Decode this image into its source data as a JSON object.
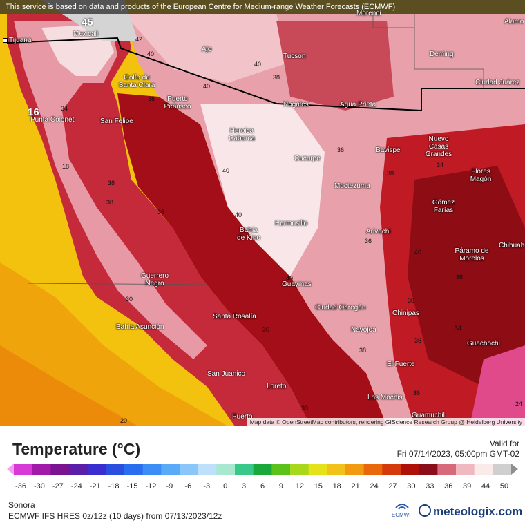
{
  "disclaimer": "This service is based on data and products of the European Centre for Medium-range Weather Forecasts (ECMWF)",
  "attribution": "Map data © OpenStreetMap contributors, rendering GIScience Research Group @ Heidelberg University",
  "cities": [
    "Tijuana",
    "Mexicali",
    "Ajo",
    "Tucson",
    "Morenci",
    "Alamo",
    "Deming",
    "Ciudad Juárez",
    "Golfo de Santa Clara",
    "Puerto Peñasco",
    "San Felipe",
    "Punta Colonet",
    "Heroica Caborca",
    "Nogales",
    "Agua Prieta",
    "Cucurpe",
    "Bavispe",
    "Nuevo Casas Grandes",
    "Flores Magón",
    "Moctezuma",
    "Gómez Farías",
    "Hermosillo",
    "Bahía de Kino",
    "Arivechi",
    "Páramo de Morelos",
    "Chihuahua",
    "Guerrero Negro",
    "Guaymas",
    "Ciudad Obregón",
    "Chinipas",
    "Bahía Asunción",
    "Santa Rosalía",
    "Navojoa",
    "Guachochi",
    "El Fuerte",
    "San Juanico",
    "Loreto",
    "Los Mochis",
    "Guamuchil",
    "Puerto"
  ],
  "isolines": [
    "45",
    "42",
    "40",
    "40",
    "38",
    "40",
    "16",
    "34",
    "18",
    "38",
    "38",
    "36",
    "38",
    "40",
    "40",
    "36",
    "40",
    "36",
    "38",
    "34",
    "40",
    "38",
    "36",
    "34",
    "30",
    "30",
    "30",
    "38",
    "36",
    "36",
    "24",
    "20"
  ],
  "legend": {
    "title": "Temperature (°C)",
    "valid_label": "Valid for",
    "valid_time": "Fri 07/14/2023, 05:00pm GMT-02",
    "ticks": [
      "-36",
      "-30",
      "-27",
      "-24",
      "-21",
      "-18",
      "-15",
      "-12",
      "-9",
      "-6",
      "-3",
      "0",
      "3",
      "6",
      "9",
      "12",
      "15",
      "18",
      "21",
      "24",
      "27",
      "30",
      "33",
      "36",
      "39",
      "44",
      "50"
    ],
    "colors": [
      "#f2a0f0",
      "#d83ad8",
      "#a21aa8",
      "#7a1490",
      "#5a1ea8",
      "#3a2ed0",
      "#2a4ee0",
      "#2a6ef0",
      "#3a8ef5",
      "#5aaaf8",
      "#8ac6fa",
      "#bfe0fb",
      "#a8e8d0",
      "#3ac88a",
      "#1aa83a",
      "#5ac21a",
      "#a8d81a",
      "#e6e21a",
      "#f0c21a",
      "#f29a10",
      "#e8680a",
      "#d43a0a",
      "#b0100a",
      "#8a0e1a",
      "#d66a7a",
      "#f0b8c0",
      "#fbeaea",
      "#cfcfcf",
      "#8e8e8e"
    ]
  },
  "footer": {
    "region": "Sonora",
    "model": "ECMWF IFS HRES 0z/12z (10 days) from 07/13/2023/12z",
    "ecmwf_label": "ECMWF",
    "brand": "meteologix.com"
  }
}
